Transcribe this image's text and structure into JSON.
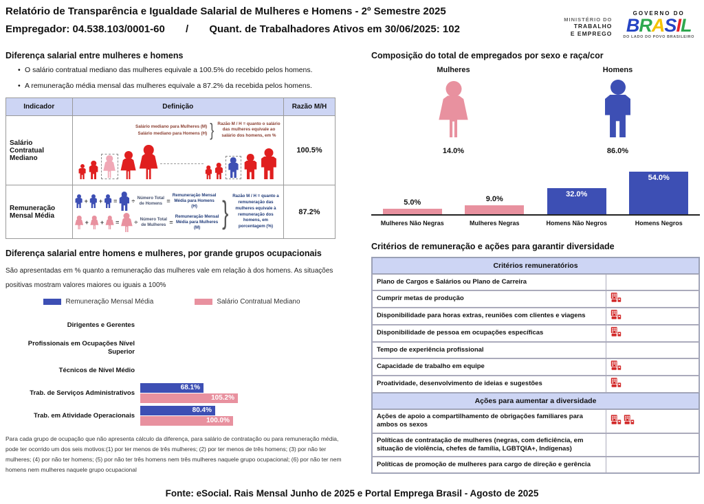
{
  "header": {
    "title": "Relatório de Transparência e Igualdade Salarial de Mulheres e Homens - 2º Semestre 2025",
    "employer": "Empregador: 04.538.103/0001-60",
    "separator": "/",
    "active_workers": "Quant. de Trabalhadores Ativos em 30/06/2025: 102",
    "ministry_line1": "MINISTÉRIO DO",
    "ministry_line2": "TRABALHO",
    "ministry_line3": "E EMPREGO",
    "gov_top": "GOVERNO DO",
    "gov_brand": "BRASIL",
    "gov_tagline": "DO LADO DO POVO BRASILEIRO"
  },
  "pay_gap": {
    "title": "Diferença salarial entre mulheres e homens",
    "bullets": [
      "O salário contratual mediano das mulheres equivale a 100.5% do recebido pelos homens.",
      "A remuneração média mensal das mulheres equivale a 87.2% da recebida pelos homens."
    ],
    "headers": [
      "Indicador",
      "Definição",
      "Razão M/H"
    ],
    "formula_symbols": {
      "plus": "+",
      "equals": "=",
      "divide": "÷"
    },
    "rows": [
      {
        "indicator": "Salário Contratual Mediano",
        "ratio": "100.5%",
        "diagram": {
          "line1": "Salário mediano para Mulheres (M)",
          "line2": "Salário mediano para Homens (H)",
          "note": "Razão M / H = quanto o salário das mulheres equivale ao salário dos homens, em %"
        }
      },
      {
        "indicator": "Remuneração Mensal Média",
        "ratio": "87.2%",
        "diagram": {
          "men_label": "Número Total de Homens",
          "men_result": "Remuneração Mensal Média para Homens (H)",
          "women_label": "Número Total de Mulheres",
          "women_result": "Remuneração Mensal Média para Mulheres (M)",
          "note": "Razão M / H = quanto a remuneração das mulheres equivale à remuneração dos homens, em porcentagem (%)"
        }
      }
    ]
  },
  "composition": {
    "title": "Composição do total de empregados por sexo e raça/cor",
    "women_label": "Mulheres",
    "women_value": "14.0%",
    "men_label": "Homens",
    "men_value": "86.0%"
  },
  "occupational": {
    "title": "Diferença salarial entre homens e mulheres, por grande grupos ocupacionais",
    "subtitle": "São apresentadas em % quanto a remuneração das mulheres vale em relação à dos homens. As situações positivas mostram valores maiores ou iguais a 100%",
    "footnote": "Para cada grupo de ocupação que não apresenta cálculo da diferença, para salário de contratação ou para remuneração média, pode ter ocorrido um dos seis motivos:(1) por ter menos de três mulheres; (2) por ter menos de três homens; (3) por não ter mulheres; (4) por não ter homens; (5) por não ter três homens nem três mulheres naquele grupo ocupacional; (6) por não ter nem homens nem mulheres naquele grupo ocupacional"
  },
  "criteria": {
    "title": "Critérios de remuneração e ações para garantir diversidade",
    "sections": [
      {
        "header": "Critérios remuneratórios",
        "rows": [
          {
            "label": "Plano de Cargos e Salários ou Plano de Carreira",
            "icons": 0
          },
          {
            "label": "Cumprir metas de produção",
            "icons": 1
          },
          {
            "label": "Disponibilidade para horas extras, reuniões com clientes e viagens",
            "icons": 1
          },
          {
            "label": "Disponibilidade de pessoa em ocupações específicas",
            "icons": 1
          },
          {
            "label": "Tempo de experiência profissional",
            "icons": 0
          },
          {
            "label": "Capacidade de trabalho em equipe",
            "icons": 1
          },
          {
            "label": "Proatividade, desenvolvimento de ideias e sugestões",
            "icons": 1
          }
        ]
      },
      {
        "header": "Ações para aumentar a diversidade",
        "rows": [
          {
            "label": "Ações de apoio a compartilhamento de obrigações familiares para ambos os sexos",
            "icons": 2
          },
          {
            "label": "Políticas de contratação de mulheres (negras, com deficiência, em situação de violência, chefes de família, LGBTQIA+, Indígenas)",
            "icons": 0
          },
          {
            "label": "Políticas de promoção de mulheres para cargo de direção e gerência",
            "icons": 0
          }
        ]
      }
    ]
  },
  "footer": "Fonte: eSocial. Rais Mensal Junho de 2025 e Portal Emprega Brasil - Agosto de 2025",
  "colors": {
    "blue": "#3d4fb4",
    "pink": "#e8919f",
    "red": "#e01f1f",
    "header_lavender": "#cdd5f4",
    "icon_red": "#d22a2a"
  },
  "chart_data": [
    {
      "type": "bar",
      "title": "Composição do total de empregados por sexo e raça/cor",
      "categories": [
        "Mulheres Não Negras",
        "Mulheres Negras",
        "Homens Não Negros",
        "Homens Negros"
      ],
      "values": [
        5.0,
        9.0,
        32.0,
        54.0
      ],
      "value_labels": [
        "5.0%",
        "9.0%",
        "32.0%",
        "54.0%"
      ],
      "bar_colors": [
        "#e8919f",
        "#e8919f",
        "#3d4fb4",
        "#3d4fb4"
      ],
      "label_position": [
        "above",
        "above",
        "inside",
        "inside"
      ],
      "ylim": [
        0,
        60
      ],
      "annotations": {
        "Mulheres": "14.0%",
        "Homens": "86.0%"
      }
    },
    {
      "type": "bar",
      "orientation": "horizontal",
      "title": "Diferença salarial entre homens e mulheres, por grande grupos ocupacionais",
      "categories": [
        "Dirigentes e Gerentes",
        "Profissionais em Ocupações Nível Superior",
        "Técnicos de Nível Médio",
        "Trab. de Serviços Administrativos",
        "Trab. em Atividade Operacionais"
      ],
      "series": [
        {
          "name": "Remuneração Mensal Média",
          "color": "#3d4fb4",
          "values": [
            null,
            null,
            null,
            68.1,
            80.4
          ],
          "labels": [
            null,
            null,
            null,
            "68.1%",
            "80.4%"
          ]
        },
        {
          "name": "Salário Contratual Mediano",
          "color": "#e8919f",
          "values": [
            null,
            null,
            null,
            105.2,
            100.0
          ],
          "labels": [
            null,
            null,
            null,
            "105.2%",
            "100.0%"
          ]
        }
      ],
      "xlim": [
        0,
        110
      ]
    }
  ]
}
